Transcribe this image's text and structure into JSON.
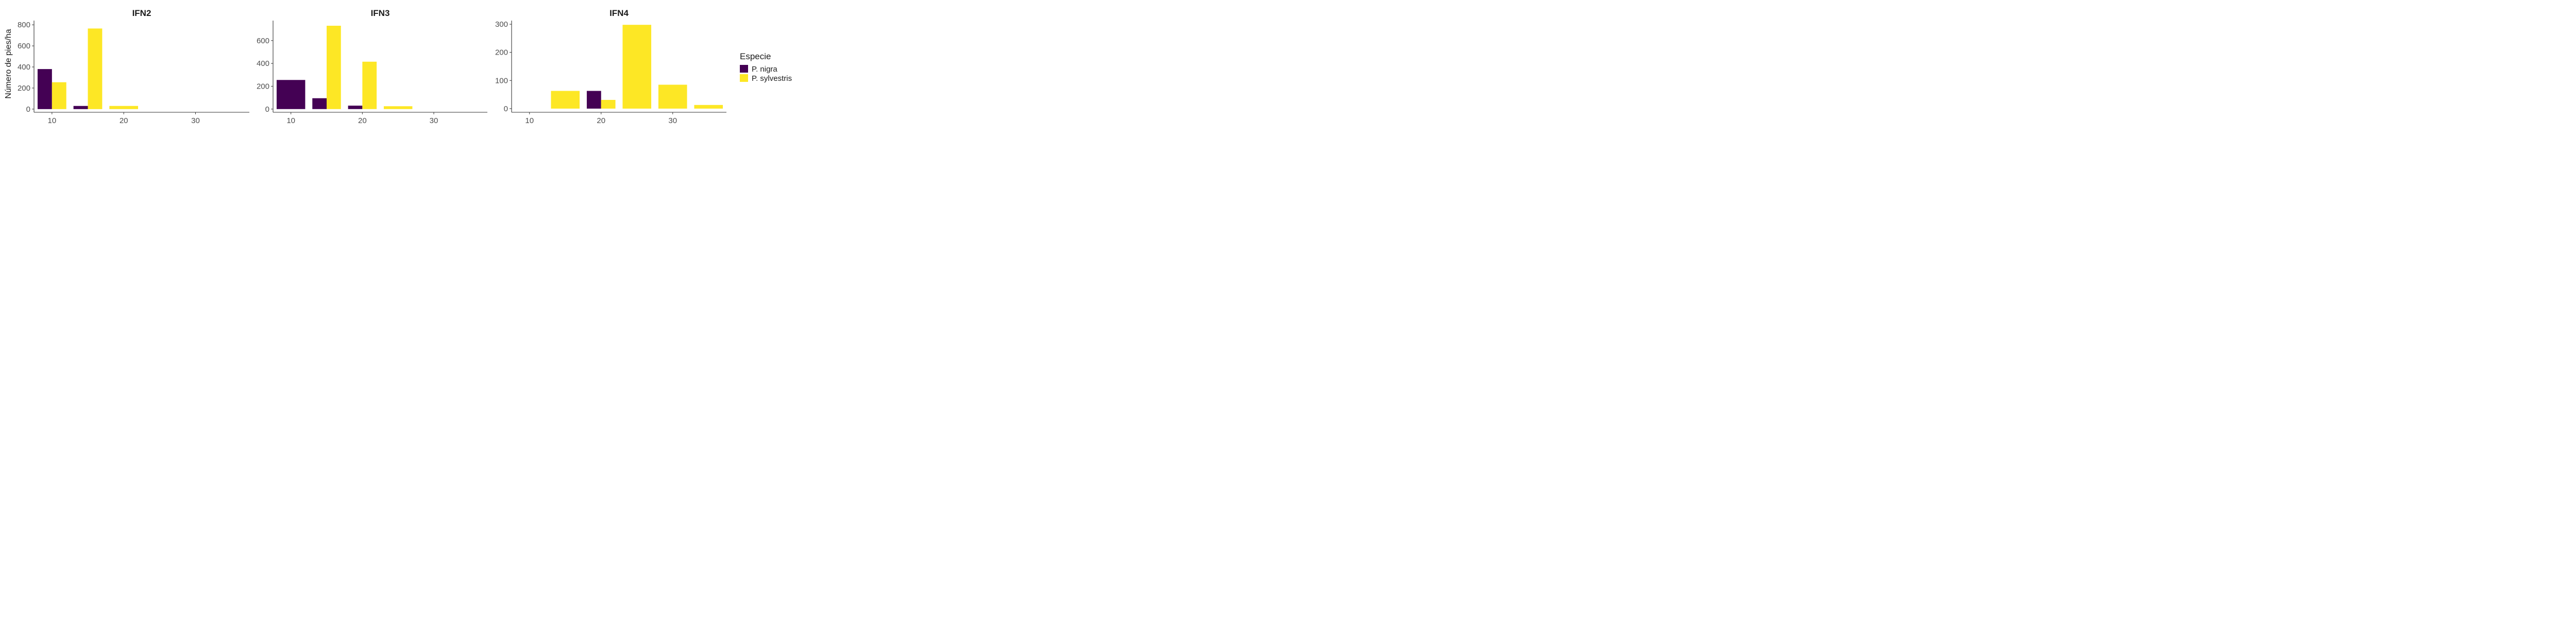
{
  "chart_data": {
    "type": "bar",
    "ylabel": "Número de pies/ha",
    "legend": {
      "title": "Especie",
      "position": "right",
      "entries": [
        {
          "name": "P. nigra",
          "color": "#440154"
        },
        {
          "name": "P. sylvestris",
          "color": "#FDE725"
        }
      ]
    },
    "grid": false,
    "panels": [
      {
        "title": "IFN2",
        "xlim": [
          7.5,
          37.5
        ],
        "ylim": [
          -30,
          840
        ],
        "xticks": [
          10,
          20,
          30
        ],
        "yticks": [
          0,
          200,
          400,
          600,
          800
        ],
        "series": [
          {
            "name": "P. nigra",
            "x": [
              10,
              15
            ],
            "values": [
              380,
              30
            ]
          },
          {
            "name": "P. sylvestris",
            "x": [
              10,
              15,
              20
            ],
            "values": [
              255,
              765,
              30
            ]
          }
        ]
      },
      {
        "title": "IFN3",
        "xlim": [
          7.5,
          37.5
        ],
        "ylim": [
          -28,
          775
        ],
        "xticks": [
          10,
          20,
          30
        ],
        "yticks": [
          0,
          200,
          400,
          600
        ],
        "series": [
          {
            "name": "P. nigra",
            "x": [
              10,
              15,
              20
            ],
            "values": [
              255,
              95,
              30
            ]
          },
          {
            "name": "P. sylvestris",
            "x": [
              15,
              20,
              25
            ],
            "values": [
              730,
              415,
              25
            ]
          }
        ]
      },
      {
        "title": "IFN4",
        "xlim": [
          7.5,
          37.5
        ],
        "ylim": [
          -13,
          313
        ],
        "xticks": [
          10,
          20,
          30
        ],
        "yticks": [
          0,
          100,
          200,
          300
        ],
        "series": [
          {
            "name": "P. nigra",
            "x": [
              20
            ],
            "values": [
              63
            ]
          },
          {
            "name": "P. sylvestris",
            "x": [
              15,
              20,
              25,
              30,
              35
            ],
            "values": [
              63,
              31,
              298,
              85,
              13
            ]
          }
        ]
      }
    ]
  }
}
